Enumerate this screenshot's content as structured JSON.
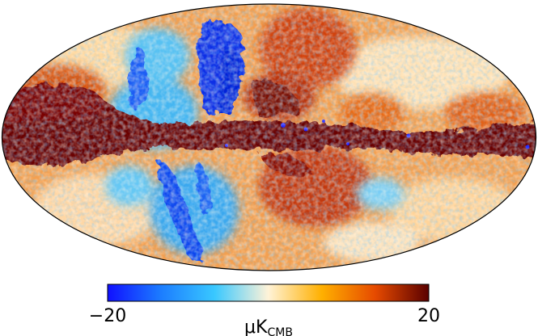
{
  "figure": {
    "map": {
      "projection": "mollweide",
      "units": "μK_CMB"
    },
    "colorbar": {
      "min_label": "−20",
      "max_label": "20",
      "min_value": -20,
      "max_value": 20,
      "unit_main": "μK",
      "unit_sub": "CMB",
      "colors": [
        "#1010ff",
        "#1c7dff",
        "#39c8ff",
        "#fff3d8",
        "#ffb000",
        "#e64a00",
        "#5a0000"
      ]
    }
  },
  "palette": {
    "galactic_band": "#6a0000",
    "deep_blue": "#0033ee",
    "light_blue": "#3cc0ff",
    "orange": "#f28a1e",
    "cream": "#fff1d6"
  }
}
